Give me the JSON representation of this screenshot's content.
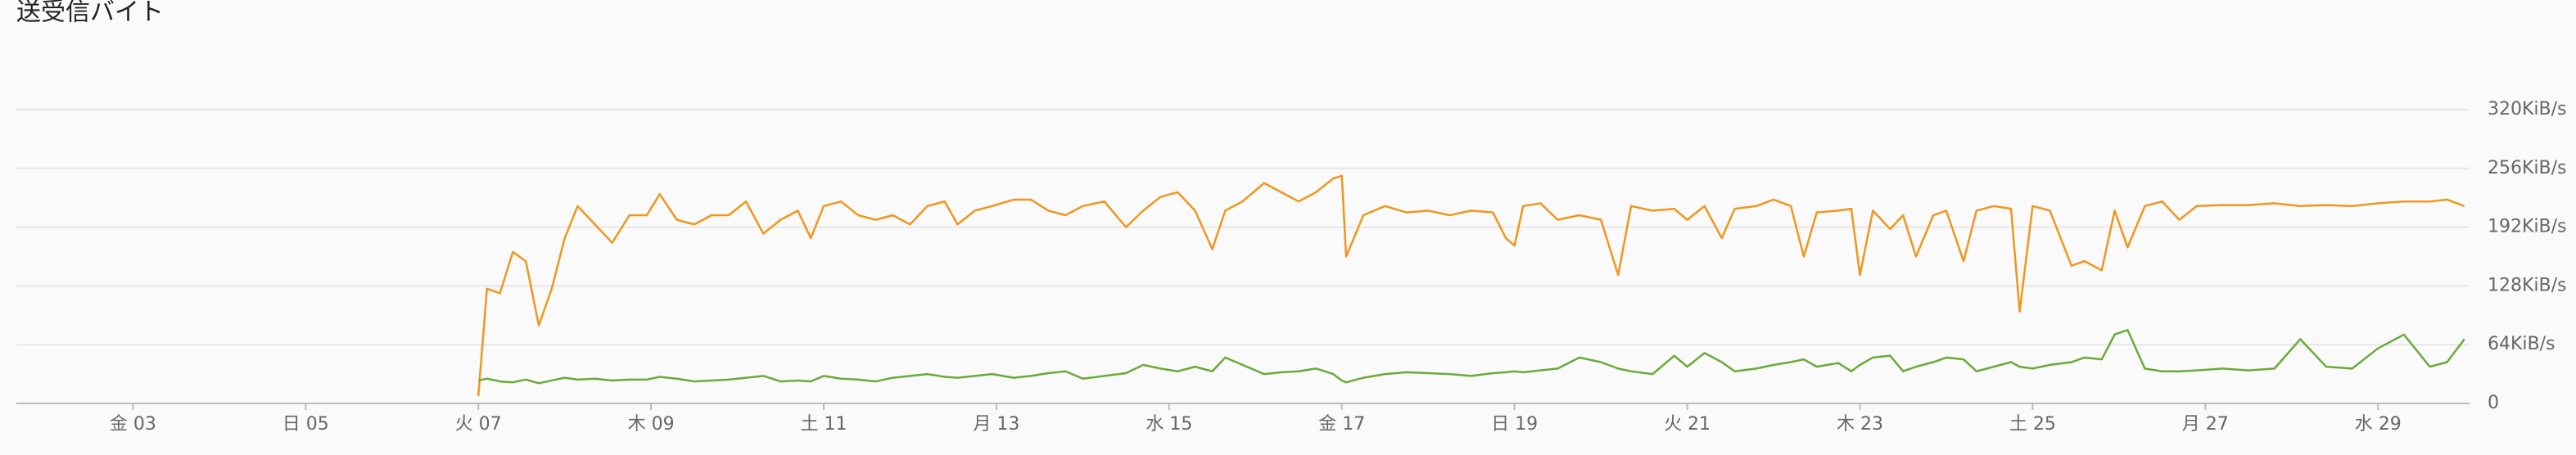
{
  "chart_data": {
    "type": "line",
    "title": "送受信バイト",
    "x": [
      7.0,
      7.1,
      7.25,
      7.4,
      7.55,
      7.7,
      7.85,
      8.0,
      8.15,
      8.35,
      8.55,
      8.75,
      8.95,
      9.1,
      9.3,
      9.5,
      9.7,
      9.9,
      10.1,
      10.3,
      10.5,
      10.7,
      10.85,
      11.0,
      11.2,
      11.4,
      11.6,
      11.8,
      12.0,
      12.2,
      12.4,
      12.55,
      12.75,
      12.95,
      13.2,
      13.4,
      13.6,
      13.8,
      14.0,
      14.25,
      14.5,
      14.7,
      14.9,
      15.1,
      15.3,
      15.5,
      15.65,
      15.85,
      16.1,
      16.3,
      16.5,
      16.7,
      16.9,
      17.0,
      17.05,
      17.25,
      17.5,
      17.75,
      18.0,
      18.25,
      18.5,
      18.75,
      18.9,
      19.0,
      19.1,
      19.3,
      19.5,
      19.75,
      20.0,
      20.2,
      20.35,
      20.6,
      20.85,
      21.0,
      21.2,
      21.4,
      21.55,
      21.8,
      22.0,
      22.2,
      22.35,
      22.5,
      22.75,
      22.9,
      23.0,
      23.15,
      23.35,
      23.5,
      23.65,
      23.85,
      24.0,
      24.2,
      24.35,
      24.55,
      24.75,
      24.85,
      25.0,
      25.2,
      25.45,
      25.6,
      25.8,
      25.95,
      26.1,
      26.3,
      26.5,
      26.7,
      26.9,
      27.2,
      27.5,
      27.8,
      28.1,
      28.4,
      28.7,
      29.0,
      29.3,
      29.6,
      29.8,
      30.0
    ],
    "series": [
      {
        "color": "#f0961e",
        "values": [
          8,
          125,
          120,
          165,
          155,
          85,
          125,
          180,
          215,
          195,
          175,
          205,
          205,
          228,
          200,
          195,
          205,
          205,
          220,
          185,
          200,
          210,
          180,
          215,
          220,
          205,
          200,
          205,
          195,
          215,
          220,
          195,
          210,
          215,
          222,
          222,
          210,
          205,
          215,
          220,
          192,
          210,
          225,
          230,
          210,
          168,
          210,
          220,
          240,
          230,
          220,
          230,
          245,
          248,
          160,
          205,
          215,
          208,
          210,
          205,
          210,
          208,
          180,
          172,
          215,
          218,
          200,
          205,
          200,
          140,
          215,
          210,
          212,
          200,
          215,
          180,
          212,
          215,
          222,
          215,
          160,
          208,
          210,
          212,
          140,
          210,
          190,
          205,
          160,
          205,
          210,
          155,
          210,
          215,
          212,
          100,
          215,
          210,
          150,
          155,
          145,
          210,
          170,
          215,
          220,
          200,
          215,
          216,
          216,
          218,
          215,
          216,
          215,
          218,
          220,
          220,
          222,
          215
        ]
      },
      {
        "color": "#6aaa3a",
        "values": [
          25,
          27,
          24,
          23,
          26,
          22,
          25,
          28,
          26,
          27,
          25,
          26,
          26,
          29,
          27,
          24,
          25,
          26,
          28,
          30,
          24,
          25,
          24,
          30,
          27,
          26,
          24,
          28,
          30,
          32,
          29,
          28,
          30,
          32,
          28,
          30,
          33,
          35,
          27,
          30,
          33,
          42,
          38,
          35,
          40,
          35,
          50,
          42,
          32,
          34,
          35,
          38,
          32,
          25,
          23,
          28,
          32,
          34,
          33,
          32,
          30,
          33,
          34,
          35,
          34,
          36,
          38,
          50,
          45,
          38,
          35,
          32,
          52,
          40,
          55,
          45,
          35,
          38,
          42,
          45,
          48,
          40,
          44,
          35,
          42,
          50,
          52,
          35,
          40,
          45,
          50,
          48,
          35,
          40,
          45,
          40,
          38,
          42,
          45,
          50,
          48,
          75,
          80,
          38,
          35,
          35,
          36,
          38,
          36,
          38,
          70,
          40,
          38,
          60,
          75,
          40,
          45,
          70
        ]
      }
    ],
    "xlim": [
      1.65,
      30.06
    ],
    "xticks": [
      {
        "value": 3,
        "label": "金 03"
      },
      {
        "value": 5,
        "label": "日 05"
      },
      {
        "value": 7,
        "label": "火 07"
      },
      {
        "value": 9,
        "label": "木 09"
      },
      {
        "value": 11,
        "label": "土 11"
      },
      {
        "value": 13,
        "label": "月 13"
      },
      {
        "value": 15,
        "label": "水 15"
      },
      {
        "value": 17,
        "label": "金 17"
      },
      {
        "value": 19,
        "label": "日 19"
      },
      {
        "value": 21,
        "label": "火 21"
      },
      {
        "value": 23,
        "label": "木 23"
      },
      {
        "value": 25,
        "label": "土 25"
      },
      {
        "value": 27,
        "label": "月 27"
      },
      {
        "value": 29,
        "label": "水 29"
      }
    ],
    "ylim": [
      0,
      320
    ],
    "yticks": [
      0,
      {
        "value": 64,
        "label": "64KiB/s"
      },
      {
        "value": 128,
        "label": "128KiB/s"
      },
      {
        "value": 192,
        "label": "192KiB/s"
      },
      {
        "value": 256,
        "label": "256KiB/s"
      },
      {
        "value": 320,
        "label": "320KiB/s"
      }
    ],
    "grid": true
  }
}
